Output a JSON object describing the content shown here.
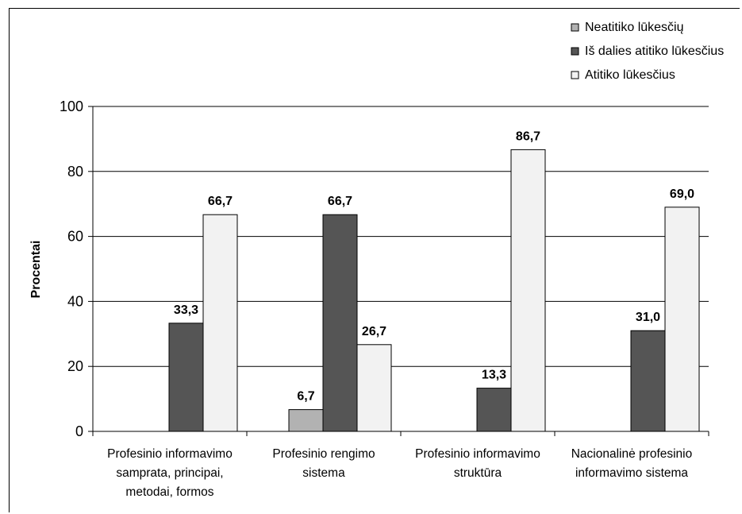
{
  "chart_data": {
    "type": "bar",
    "title": "",
    "xlabel": "",
    "ylabel": "Procentai",
    "ylim": [
      0,
      100
    ],
    "yticks": [
      "0",
      "20",
      "40",
      "60",
      "80",
      "100"
    ],
    "grid": true,
    "legend_position": "top-right",
    "categories": [
      "Profesinio informavimo samprata, principai, metodai, formos",
      "Profesinio rengimo sistema",
      "Profesinio informavimo struktūra",
      "Nacionalinė profesinio informavimo sistema"
    ],
    "category_lines": [
      [
        "Profesinio informavimo",
        "samprata, principai,",
        "metodai, formos"
      ],
      [
        "Profesinio rengimo",
        "sistema"
      ],
      [
        "Profesinio informavimo",
        "struktūra"
      ],
      [
        "Nacionalinė profesinio",
        "informavimo sistema"
      ]
    ],
    "series": [
      {
        "name": "Neatitiko lūkesčių",
        "color": "#b2b2b2",
        "values": [
          null,
          6.7,
          null,
          null
        ],
        "labels": [
          "",
          "6,7",
          "",
          ""
        ]
      },
      {
        "name": "Iš dalies atitiko lūkesčius",
        "color": "#555555",
        "values": [
          33.3,
          66.7,
          13.3,
          31.0
        ],
        "labels": [
          "33,3",
          "66,7",
          "13,3",
          "31,0"
        ]
      },
      {
        "name": "Atitiko lūkesčius",
        "color": "#f2f2f2",
        "values": [
          66.7,
          26.7,
          86.7,
          69.0
        ],
        "labels": [
          "66,7",
          "26,7",
          "86,7",
          "69,0"
        ]
      }
    ]
  }
}
